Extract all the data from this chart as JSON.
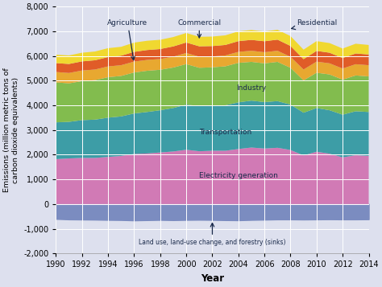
{
  "years": [
    1990,
    1991,
    1992,
    1993,
    1994,
    1995,
    1996,
    1997,
    1998,
    1999,
    2000,
    2001,
    2002,
    2003,
    2004,
    2005,
    2006,
    2007,
    2008,
    2009,
    2010,
    2011,
    2012,
    2013,
    2014
  ],
  "land_use": [
    -600,
    -620,
    -625,
    -630,
    -640,
    -645,
    -660,
    -650,
    -640,
    -650,
    -640,
    -635,
    -640,
    -650,
    -655,
    -640,
    -630,
    -620,
    -620,
    -625,
    -620,
    -615,
    -620,
    -620,
    -615
  ],
  "electricity": [
    1820,
    1850,
    1870,
    1870,
    1910,
    1950,
    2030,
    2050,
    2090,
    2130,
    2200,
    2140,
    2160,
    2160,
    2230,
    2290,
    2250,
    2280,
    2190,
    1970,
    2120,
    2040,
    1890,
    1980,
    1950
  ],
  "transportation": [
    1490,
    1480,
    1530,
    1550,
    1590,
    1600,
    1640,
    1680,
    1710,
    1760,
    1830,
    1830,
    1840,
    1840,
    1890,
    1900,
    1880,
    1890,
    1840,
    1730,
    1770,
    1760,
    1730,
    1780,
    1780
  ],
  "industry": [
    1620,
    1560,
    1580,
    1600,
    1640,
    1640,
    1660,
    1670,
    1640,
    1640,
    1640,
    1550,
    1540,
    1580,
    1600,
    1570,
    1570,
    1590,
    1490,
    1310,
    1430,
    1450,
    1420,
    1450,
    1440
  ],
  "agriculture": [
    420,
    420,
    430,
    430,
    435,
    435,
    440,
    440,
    435,
    440,
    450,
    450,
    440,
    440,
    445,
    450,
    450,
    450,
    445,
    440,
    450,
    450,
    450,
    455,
    455
  ],
  "commercial": [
    360,
    365,
    370,
    375,
    380,
    385,
    395,
    400,
    405,
    415,
    425,
    420,
    420,
    425,
    435,
    440,
    445,
    450,
    440,
    420,
    435,
    430,
    425,
    435,
    435
  ],
  "residential": [
    340,
    345,
    350,
    355,
    360,
    360,
    375,
    375,
    375,
    380,
    385,
    385,
    385,
    390,
    395,
    400,
    395,
    400,
    400,
    385,
    395,
    390,
    385,
    395,
    385
  ],
  "colors": {
    "land_use": "#7b8cc0",
    "electricity": "#d17ab5",
    "transportation": "#3d9da6",
    "industry": "#82bc4e",
    "agriculture": "#e8a830",
    "commercial": "#e05c28",
    "residential": "#f0d830"
  },
  "background_color": "#dde0ee",
  "plot_bg_color": "#dde0ee",
  "xlabel": "Year",
  "ylabel": "Emissions (million metric tons of\ncarbon dioxide equivalents)",
  "ylim": [
    -2000,
    8000
  ],
  "yticks": [
    -2000,
    -1000,
    0,
    1000,
    2000,
    3000,
    4000,
    5000,
    6000,
    7000,
    8000
  ],
  "xticks": [
    1990,
    1992,
    1994,
    1996,
    1998,
    2000,
    2002,
    2004,
    2006,
    2008,
    2010,
    2012,
    2014
  ]
}
